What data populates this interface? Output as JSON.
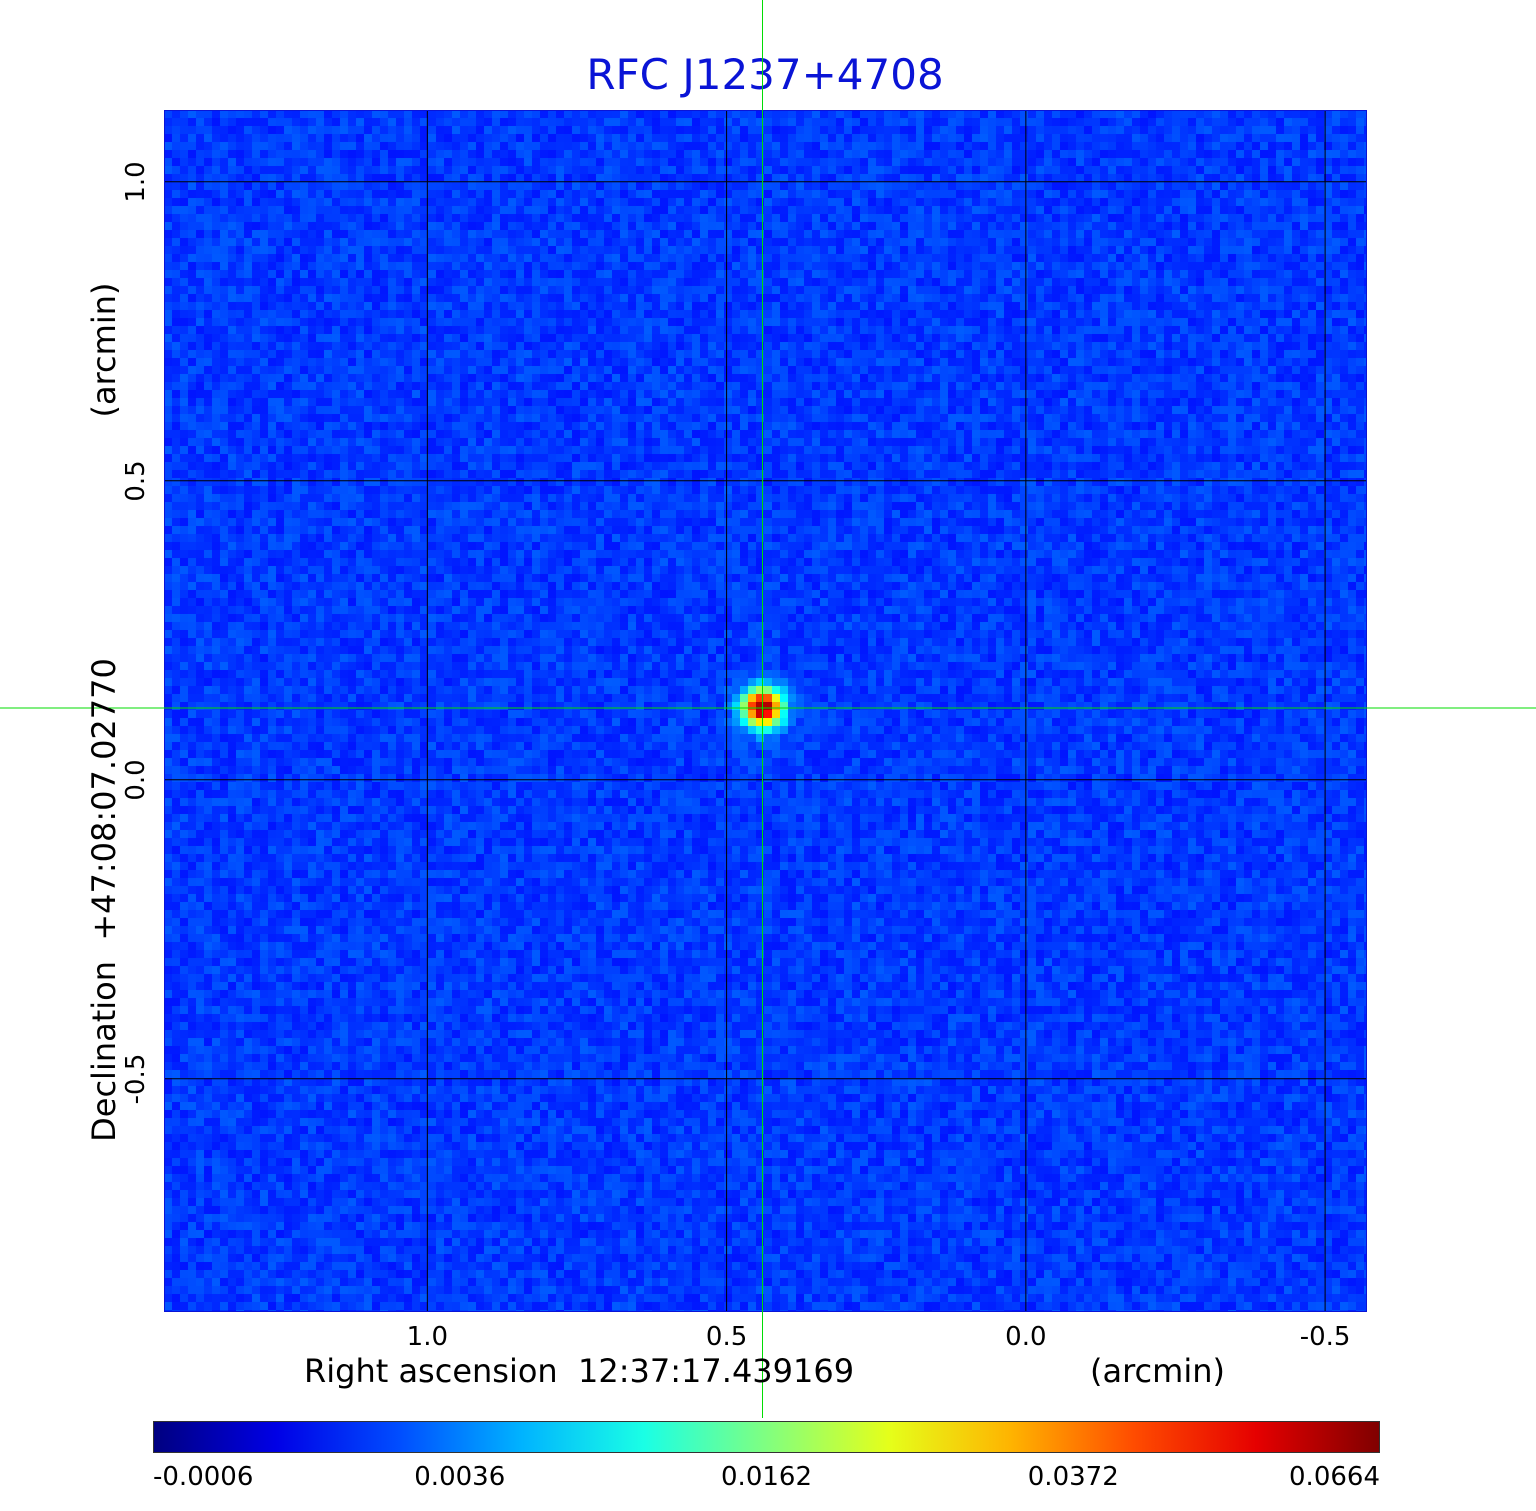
{
  "chart_data": {
    "type": "heatmap",
    "title": "RFC J1237+4708",
    "xlabel": "Right ascension  12:37:17.439169",
    "xunit": "(arcmin)",
    "ylabel": "Declination  +47:08:07.02770",
    "yunit": "(arcmin)",
    "xlim": [
      1.44,
      -0.57
    ],
    "ylim": [
      -0.89,
      1.12
    ],
    "x_ticks": [
      {
        "value": 1.0,
        "label": "1.0"
      },
      {
        "value": 0.5,
        "label": "0.5"
      },
      {
        "value": 0.0,
        "label": "0.0"
      },
      {
        "value": -0.5,
        "label": "-0.5"
      }
    ],
    "y_ticks": [
      {
        "value": 1.0,
        "label": "1.0"
      },
      {
        "value": 0.5,
        "label": "0.5"
      },
      {
        "value": 0.0,
        "label": "0.0"
      },
      {
        "value": -0.5,
        "label": "-0.5"
      }
    ],
    "grid": true,
    "source_peak": {
      "x": 0.44,
      "y": 0.12,
      "value": 0.0664
    },
    "crosshair": {
      "x": 0.44,
      "y": 0.12,
      "color": "#00dd00"
    },
    "colormap": "jet",
    "colorbar_ticks": [
      "-0.0006",
      "0.0036",
      "0.0162",
      "0.0372",
      "0.0664"
    ],
    "colorbar_range": [
      -0.0006,
      0.0664
    ]
  },
  "colors": {
    "title": "#0a14d6",
    "grid": "#000000",
    "crosshair": "#00dd00"
  }
}
